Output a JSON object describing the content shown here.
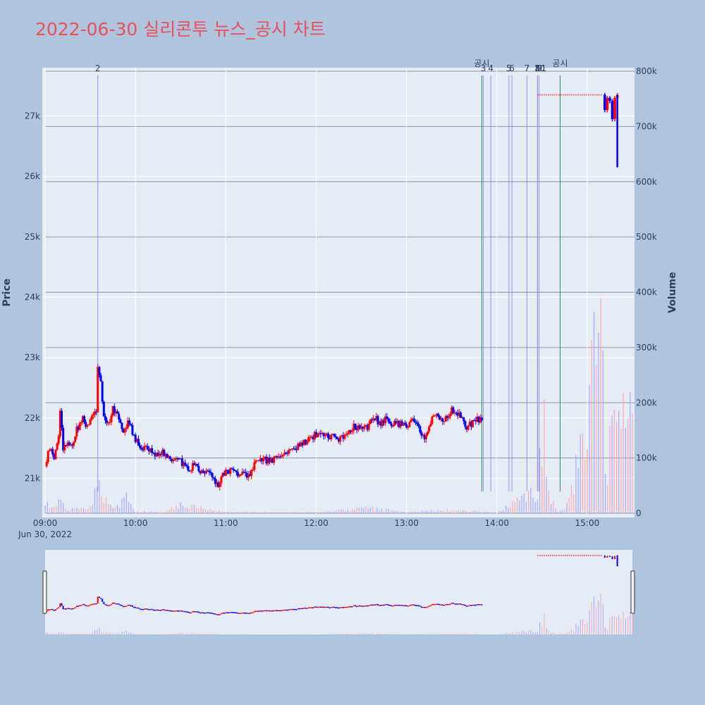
{
  "title": "2022-06-30 실리콘투 뉴스_공시 차트",
  "chart_data": {
    "type": "candlestick",
    "title": "2022-06-30 실리콘투 뉴스_공시 차트",
    "date_label": "Jun 30, 2022",
    "price_axis": {
      "title": "Price",
      "range": [
        20400,
        27800
      ],
      "ticks": [
        21000,
        22000,
        23000,
        24000,
        25000,
        26000,
        27000
      ],
      "tick_labels": [
        "21k",
        "22k",
        "23k",
        "24k",
        "25k",
        "26k",
        "27k"
      ]
    },
    "volume_axis": {
      "title": "Volume",
      "range": [
        0,
        800000
      ],
      "ticks": [
        0,
        100000,
        200000,
        300000,
        400000,
        500000,
        600000,
        700000,
        800000
      ],
      "tick_labels": [
        "0",
        "100k",
        "200k",
        "300k",
        "400k",
        "500k",
        "600k",
        "700k",
        "800k"
      ]
    },
    "time_axis": {
      "range": [
        "09:00",
        "15:30"
      ],
      "ticks": [
        "09:00",
        "10:00",
        "11:00",
        "12:00",
        "13:00",
        "14:00",
        "15:00"
      ],
      "tick_labels": [
        "09:00",
        "10:00",
        "11:00",
        "12:00",
        "13:00",
        "14:00",
        "15:00"
      ]
    },
    "price_path": [
      [
        "09:00",
        21200
      ],
      [
        "09:03",
        21500
      ],
      [
        "09:06",
        21350
      ],
      [
        "09:09",
        21700
      ],
      [
        "09:10",
        22150
      ],
      [
        "09:12",
        21500
      ],
      [
        "09:15",
        21600
      ],
      [
        "09:18",
        21550
      ],
      [
        "09:21",
        21800
      ],
      [
        "09:25",
        22000
      ],
      [
        "09:28",
        21850
      ],
      [
        "09:32",
        22050
      ],
      [
        "09:34",
        22150
      ],
      [
        "09:35",
        22800
      ],
      [
        "09:37",
        22550
      ],
      [
        "09:39",
        22050
      ],
      [
        "09:42",
        21900
      ],
      [
        "09:45",
        22150
      ],
      [
        "09:48",
        22100
      ],
      [
        "09:52",
        21800
      ],
      [
        "09:55",
        21950
      ],
      [
        "09:57",
        21850
      ],
      [
        "09:59",
        21700
      ],
      [
        "10:02",
        21550
      ],
      [
        "10:06",
        21500
      ],
      [
        "10:10",
        21450
      ],
      [
        "10:15",
        21400
      ],
      [
        "10:18",
        21450
      ],
      [
        "10:22",
        21350
      ],
      [
        "10:28",
        21300
      ],
      [
        "10:32",
        21250
      ],
      [
        "10:35",
        21150
      ],
      [
        "10:38",
        21200
      ],
      [
        "10:40",
        21250
      ],
      [
        "10:43",
        21100
      ],
      [
        "10:47",
        21150
      ],
      [
        "10:50",
        21050
      ],
      [
        "10:52",
        20950
      ],
      [
        "10:55",
        20900
      ],
      [
        "10:58",
        21050
      ],
      [
        "11:00",
        21100
      ],
      [
        "11:04",
        21150
      ],
      [
        "11:07",
        21100
      ],
      [
        "11:12",
        21050
      ],
      [
        "11:15",
        21050
      ],
      [
        "11:20",
        21250
      ],
      [
        "11:25",
        21300
      ],
      [
        "11:30",
        21300
      ],
      [
        "11:35",
        21350
      ],
      [
        "11:40",
        21450
      ],
      [
        "11:45",
        21500
      ],
      [
        "11:50",
        21550
      ],
      [
        "11:55",
        21650
      ],
      [
        "11:58",
        21700
      ],
      [
        "12:02",
        21750
      ],
      [
        "12:06",
        21700
      ],
      [
        "12:12",
        21700
      ],
      [
        "12:15",
        21650
      ],
      [
        "12:20",
        21750
      ],
      [
        "12:25",
        21850
      ],
      [
        "12:30",
        21800
      ],
      [
        "12:35",
        21850
      ],
      [
        "12:38",
        22050
      ],
      [
        "12:42",
        21900
      ],
      [
        "12:47",
        22000
      ],
      [
        "12:50",
        21900
      ],
      [
        "12:55",
        21900
      ],
      [
        "13:00",
        21900
      ],
      [
        "13:05",
        21950
      ],
      [
        "13:08",
        21850
      ],
      [
        "13:10",
        21750
      ],
      [
        "13:12",
        21650
      ],
      [
        "13:15",
        21850
      ],
      [
        "13:18",
        22050
      ],
      [
        "13:22",
        22000
      ],
      [
        "13:25",
        21950
      ],
      [
        "13:30",
        22150
      ],
      [
        "13:33",
        22100
      ],
      [
        "13:36",
        22000
      ],
      [
        "13:40",
        21850
      ],
      [
        "13:43",
        21900
      ],
      [
        "13:46",
        21950
      ],
      [
        "13:50",
        22000
      ]
    ],
    "late_segment": {
      "start": "15:10",
      "end": "15:20",
      "prices": [
        27350,
        27100,
        27300,
        27250,
        26950,
        27300,
        27350
      ],
      "low_wick": 26150,
      "high": 27350
    },
    "dotted_price_line": {
      "from": "14:27",
      "to": "15:10",
      "value": 27350
    },
    "volume_path": [
      [
        "09:00",
        20000
      ],
      [
        "09:05",
        8000
      ],
      [
        "09:10",
        30000
      ],
      [
        "09:15",
        5000
      ],
      [
        "09:20",
        12000
      ],
      [
        "09:30",
        10000
      ],
      [
        "09:35",
        68000
      ],
      [
        "09:37",
        40000
      ],
      [
        "09:45",
        8000
      ],
      [
        "09:55",
        32000
      ],
      [
        "10:00",
        4000
      ],
      [
        "10:20",
        4000
      ],
      [
        "10:30",
        16000
      ],
      [
        "11:00",
        3000
      ],
      [
        "12:00",
        2000
      ],
      [
        "12:35",
        10000
      ],
      [
        "13:00",
        3000
      ],
      [
        "13:30",
        6000
      ],
      [
        "14:00",
        2000
      ],
      [
        "14:27",
        42000
      ],
      [
        "14:30",
        140000
      ],
      [
        "14:32",
        185000
      ],
      [
        "14:34",
        40000
      ],
      [
        "14:40",
        3000
      ],
      [
        "14:46",
        12000
      ],
      [
        "14:50",
        44000
      ],
      [
        "15:10",
        390000
      ],
      [
        "15:11",
        200000
      ],
      [
        "15:12",
        110000
      ],
      [
        "15:13",
        60000
      ],
      [
        "15:16",
        200000
      ],
      [
        "15:30",
        180000
      ]
    ],
    "news_markers": [
      {
        "label": "2",
        "time": "09:35",
        "kind": "news"
      },
      {
        "label": "3",
        "time": "13:51",
        "kind": "news"
      },
      {
        "label": "4",
        "time": "13:56",
        "kind": "news"
      },
      {
        "label": "5",
        "time": "14:08",
        "kind": "news"
      },
      {
        "label": "6",
        "time": "14:10",
        "kind": "news"
      },
      {
        "label": "7",
        "time": "14:20",
        "kind": "news"
      },
      {
        "label": "8",
        "time": "14:27",
        "kind": "news"
      },
      {
        "label": "9",
        "time": "14:27",
        "kind": "news"
      },
      {
        "label": "10",
        "time": "14:27",
        "kind": "news"
      },
      {
        "label": "11",
        "time": "14:28",
        "kind": "news"
      }
    ],
    "disclosure_markers": [
      {
        "label": "공시",
        "time": "13:50",
        "kind": "disclosure"
      },
      {
        "label": "공시",
        "time": "14:42",
        "kind": "disclosure"
      }
    ],
    "colors": {
      "up": "#ff0000",
      "down": "#0000ff",
      "up_volume": "#ffaaaa",
      "down_volume": "#aaaaff",
      "news_line": "#8e95f2",
      "disclosure_line": "#2e8b57",
      "title": "#e8505b",
      "page_bg": "#b0c4de",
      "plot_bg": "#e5ecf6"
    }
  }
}
